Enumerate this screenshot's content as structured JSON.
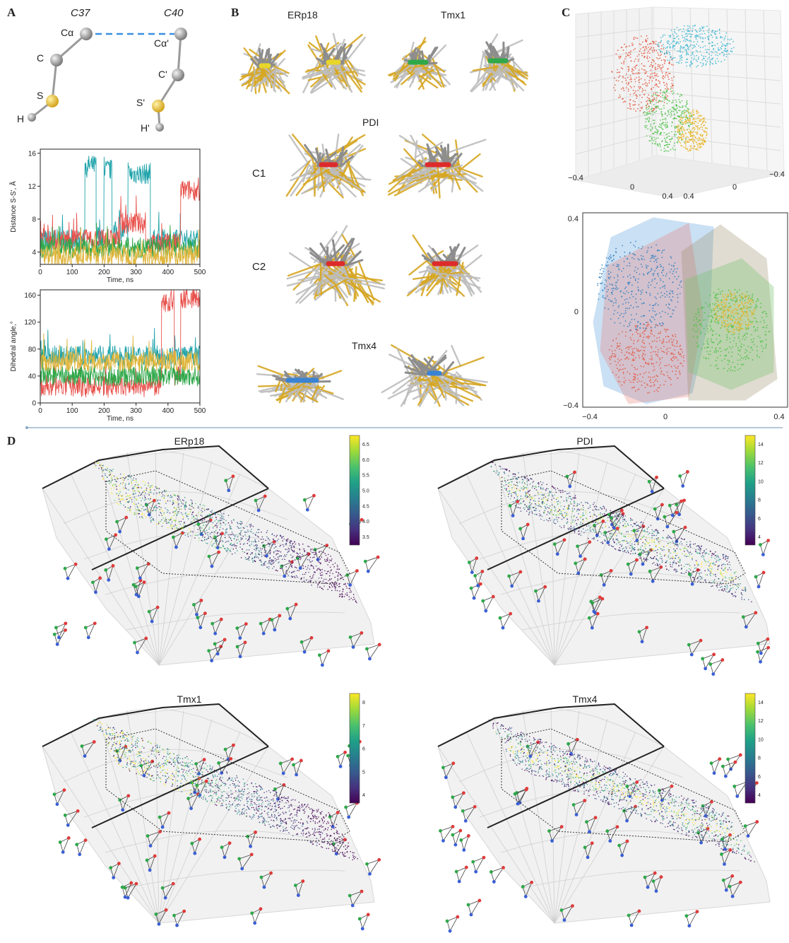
{
  "panels": {
    "A": "A",
    "B": "B",
    "C": "C",
    "D": "D"
  },
  "panelA": {
    "residues": [
      "C37",
      "C40"
    ],
    "atoms": {
      "ca": "Cα",
      "c": "C",
      "s": "S",
      "h": "H",
      "ca2": "Cα'",
      "c2": "C'",
      "s2": "S'",
      "h2": "H'"
    }
  },
  "panelB": {
    "labels": {
      "erp18": "ERp18",
      "tmx1": "Tmx1",
      "pdi": "PDI",
      "c1": "C1",
      "c2": "C2",
      "tmx4": "Tmx4"
    }
  },
  "panelC": {
    "ticks3d": [
      "−0.4",
      "0",
      "0.4",
      "0.4",
      "0",
      "−0.4"
    ],
    "ticks2d_y": [
      "0.4",
      "0",
      "−0.4"
    ],
    "ticks2d_x": [
      "−0.4",
      "0",
      "0.4"
    ]
  },
  "panelD": {
    "titles": [
      "ERp18",
      "PDI",
      "Tmx1",
      "Tmx4"
    ],
    "colorbars": [
      [
        "6.5",
        "6.0",
        "5.5",
        "5.0",
        "4.5",
        "4.0",
        "3.5"
      ],
      [
        "14",
        "12",
        "10",
        "8",
        "6",
        "4"
      ],
      [
        "8",
        "7",
        "6",
        "5",
        "4"
      ],
      [
        "14",
        "12",
        "10",
        "8",
        "6",
        "4"
      ]
    ]
  },
  "chart_data": [
    {
      "type": "line",
      "xlabel": "Time, ns",
      "ylabel": "Distance S-S', Å",
      "xticks": [
        "0",
        "100",
        "200",
        "300",
        "400",
        "500"
      ],
      "yticks": [
        "16",
        "12",
        "8",
        "4"
      ],
      "xlim": [
        0,
        500
      ],
      "ylim": [
        2.5,
        16.5
      ],
      "series": [
        {
          "color": "#1fa3aa",
          "segments": [
            [
              0,
              140,
              5.5
            ],
            [
              140,
              175,
              14.5
            ],
            [
              175,
              200,
              6
            ],
            [
              200,
              225,
              14
            ],
            [
              225,
              275,
              6.5
            ],
            [
              275,
              345,
              13.5
            ],
            [
              345,
              500,
              5.5
            ]
          ]
        },
        {
          "color": "#e8524d",
          "segments": [
            [
              0,
              250,
              5.5
            ],
            [
              250,
              330,
              7.5
            ],
            [
              330,
              440,
              5
            ],
            [
              440,
              500,
              11.5
            ]
          ]
        },
        {
          "color": "#2fa84a",
          "segments": [
            [
              0,
              500,
              4.5
            ]
          ]
        },
        {
          "color": "#e0b53a",
          "segments": [
            [
              0,
              500,
              3.6
            ]
          ]
        }
      ]
    },
    {
      "type": "line",
      "xlabel": "Time, ns",
      "ylabel": "Dihedral angle,°",
      "xticks": [
        "0",
        "100",
        "200",
        "300",
        "400",
        "500"
      ],
      "yticks": [
        "160",
        "120",
        "80",
        "40",
        "0"
      ],
      "xlim": [
        0,
        500
      ],
      "ylim": [
        0,
        168
      ],
      "series": [
        {
          "color": "#1fa3aa",
          "segments": [
            [
              0,
              500,
              70
            ]
          ]
        },
        {
          "color": "#e8524d",
          "segments": [
            [
              0,
              380,
              25
            ],
            [
              380,
              420,
              150
            ],
            [
              420,
              440,
              40
            ],
            [
              440,
              500,
              155
            ]
          ]
        },
        {
          "color": "#2fa84a",
          "segments": [
            [
              0,
              500,
              40
            ]
          ]
        },
        {
          "color": "#e0b53a",
          "segments": [
            [
              0,
              500,
              62
            ]
          ]
        }
      ]
    }
  ]
}
